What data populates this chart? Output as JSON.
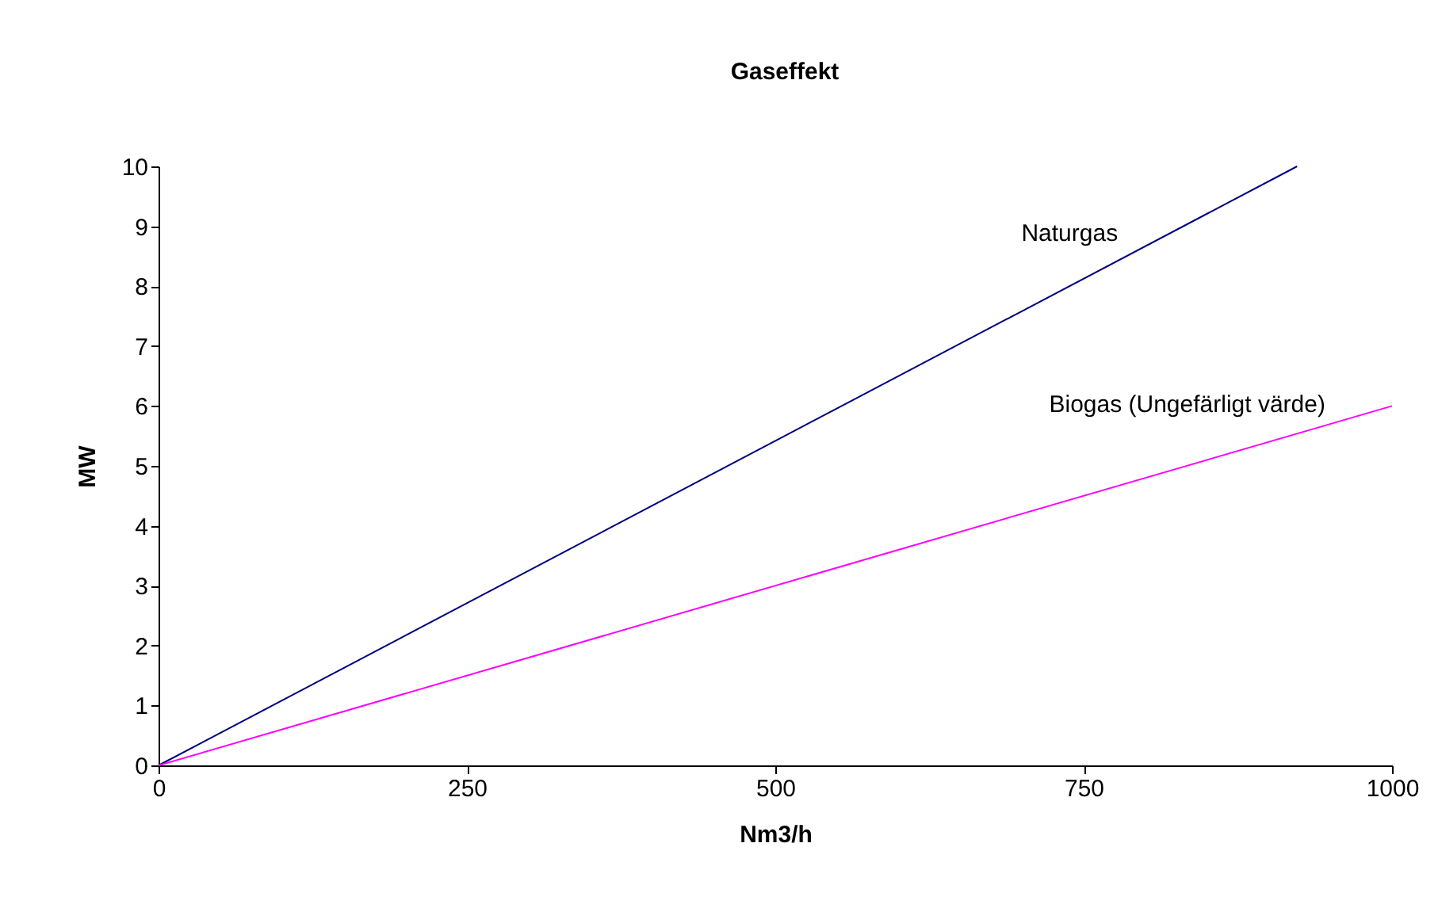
{
  "chart_data": {
    "type": "line",
    "title": "Gaseffekt",
    "xlabel": "Nm3/h",
    "ylabel": "MW",
    "xlim": [
      0,
      1000
    ],
    "xticks": [
      0,
      250,
      500,
      750,
      1000
    ],
    "ylim": [
      0,
      10
    ],
    "yticks": [
      0,
      1,
      2,
      3,
      4,
      5,
      6,
      7,
      8,
      9,
      10
    ],
    "marker": "none",
    "line_style": "solid",
    "series": [
      {
        "name": "Naturgas",
        "color": "#000080",
        "x": [
          0,
          923
        ],
        "values": [
          0,
          10
        ]
      },
      {
        "name": "Biogas (Ungefärligt värde)",
        "color": "#ff00ff",
        "x": [
          0,
          1000
        ],
        "values": [
          0,
          6
        ]
      }
    ]
  }
}
